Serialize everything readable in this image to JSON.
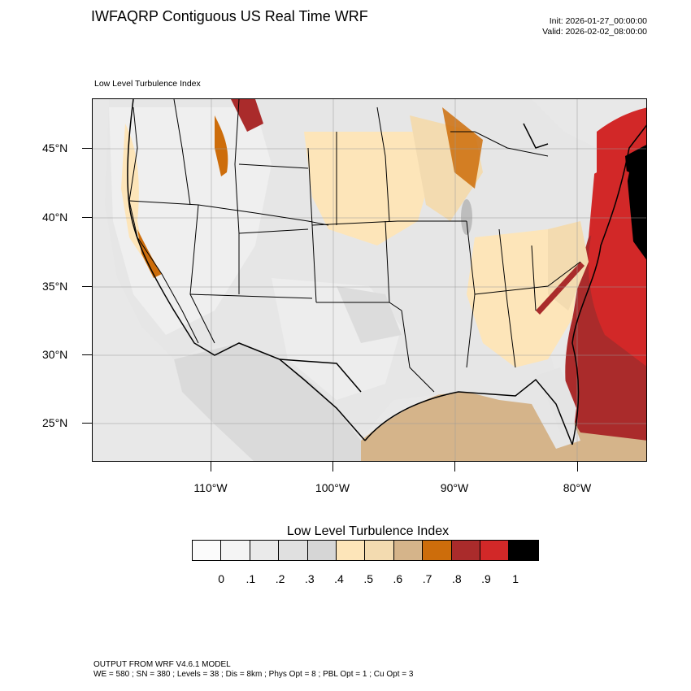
{
  "header": {
    "title": "IWFAQRP Contiguous US Real Time WRF",
    "init": "Init: 2026-01-27_00:00:00",
    "valid": "Valid: 2026-02-02_08:00:00",
    "panel_label": "Low Level Turbulence Index"
  },
  "map": {
    "lat_labels": [
      "45°N",
      "40°N",
      "35°N",
      "30°N",
      "25°N"
    ],
    "lon_labels": [
      "110°W",
      "100°W",
      "90°W",
      "80°W"
    ],
    "colors": {
      "land_light": "#e6e6e6",
      "land_mid": "#d7d7d7",
      "low_moderate": "#fde5b9",
      "moderate": "#f5d7a6",
      "tan": "#d5b48a",
      "orange": "#cd6d0b",
      "dark_red": "#aa2b2b",
      "red": "#d22828",
      "black": "#000000"
    }
  },
  "colorbar": {
    "title": "Low Level Turbulence Index",
    "colors": [
      "#fbfbfb",
      "#f4f4f4",
      "#eaeaea",
      "#e0e0e0",
      "#d6d6d6",
      "#fde5b9",
      "#f3dbb0",
      "#d5b48a",
      "#cd6d0b",
      "#aa2b2b",
      "#d22828",
      "#000000"
    ],
    "labels": [
      "0",
      ".1",
      ".2",
      ".3",
      ".4",
      ".5",
      ".6",
      ".7",
      ".8",
      ".9",
      "1"
    ]
  },
  "footer": {
    "line1": "OUTPUT FROM WRF V4.6.1 MODEL",
    "line2": "WE = 580 ; SN = 380 ; Levels = 38 ; Dis = 8km ; Phys Opt = 8 ; PBL Opt = 1 ; Cu Opt = 3"
  }
}
